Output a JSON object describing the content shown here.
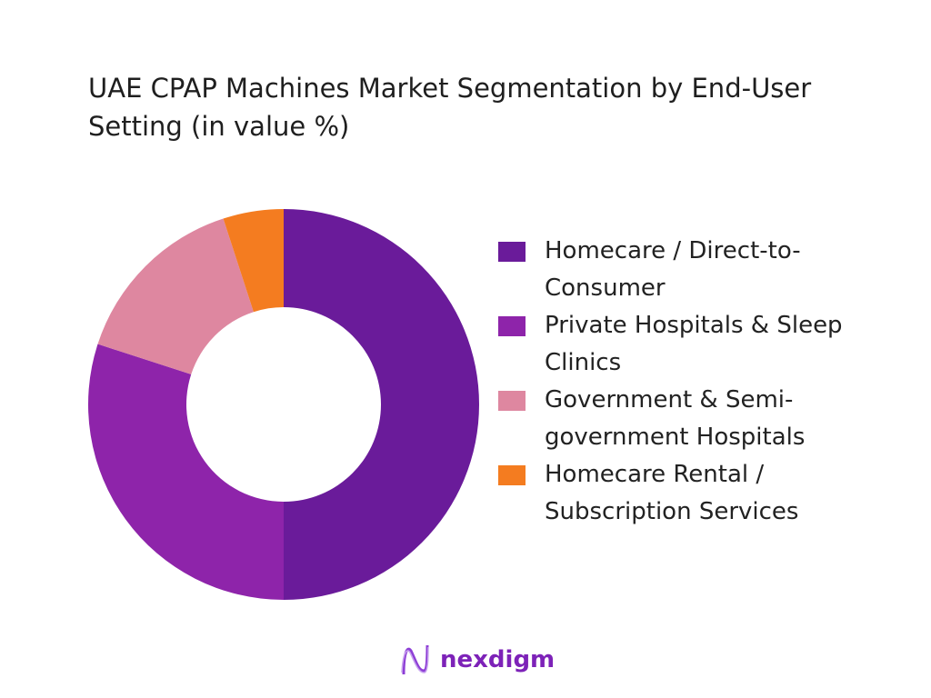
{
  "chart_data": {
    "type": "pie",
    "variant": "donut",
    "title": "UAE CPAP Machines Market Segmentation by End-User Setting (in value %)",
    "categories": [
      "Homecare / Direct-to-Consumer",
      "Private Hospitals & Sleep Clinics",
      "Government & Semi-government Hospitals",
      "Homecare Rental / Subscription Services"
    ],
    "values": [
      50,
      30,
      15,
      5
    ],
    "colors": [
      "#6a1b9a",
      "#8e24aa",
      "#de87a0",
      "#f47c20"
    ],
    "legend_position": "right"
  },
  "brand": {
    "name": "nexdigm"
  }
}
